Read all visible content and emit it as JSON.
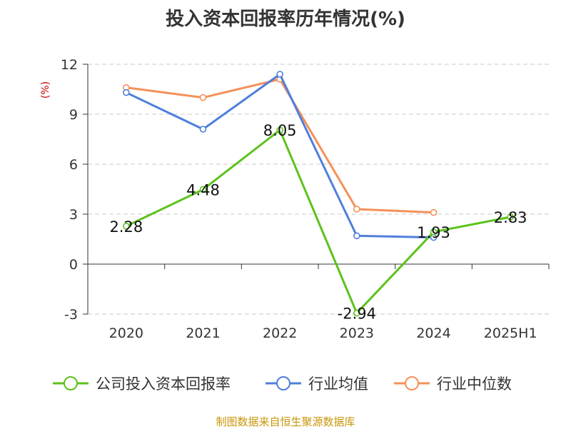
{
  "title": "投入资本回报率历年情况(%)",
  "footer": "制图数据来自恒生聚源数据库",
  "chart_data": {
    "type": "line",
    "title": "投入资本回报率历年情况(%)",
    "ylabel": "(%)",
    "categories": [
      "2020",
      "2021",
      "2022",
      "2023",
      "2024",
      "2025H1"
    ],
    "ylim": [
      -3,
      12
    ],
    "yticks": [
      12,
      9,
      6,
      3,
      0,
      -3
    ],
    "grid": true,
    "legend_position": "bottom",
    "series": [
      {
        "name": "公司投入资本回报率",
        "color": "#5cc21c",
        "values": [
          2.28,
          4.48,
          8.05,
          -2.94,
          1.93,
          2.83
        ],
        "labels": [
          "2.28",
          "4.48",
          "8.05",
          "-2.94",
          "1.93",
          "2.83"
        ]
      },
      {
        "name": "行业均值",
        "color": "#4f7fdc",
        "values": [
          10.3,
          8.1,
          11.4,
          1.7,
          1.6,
          null
        ]
      },
      {
        "name": "行业中位数",
        "color": "#f39159",
        "values": [
          10.6,
          10.0,
          11.1,
          3.3,
          3.1,
          null
        ]
      }
    ]
  }
}
